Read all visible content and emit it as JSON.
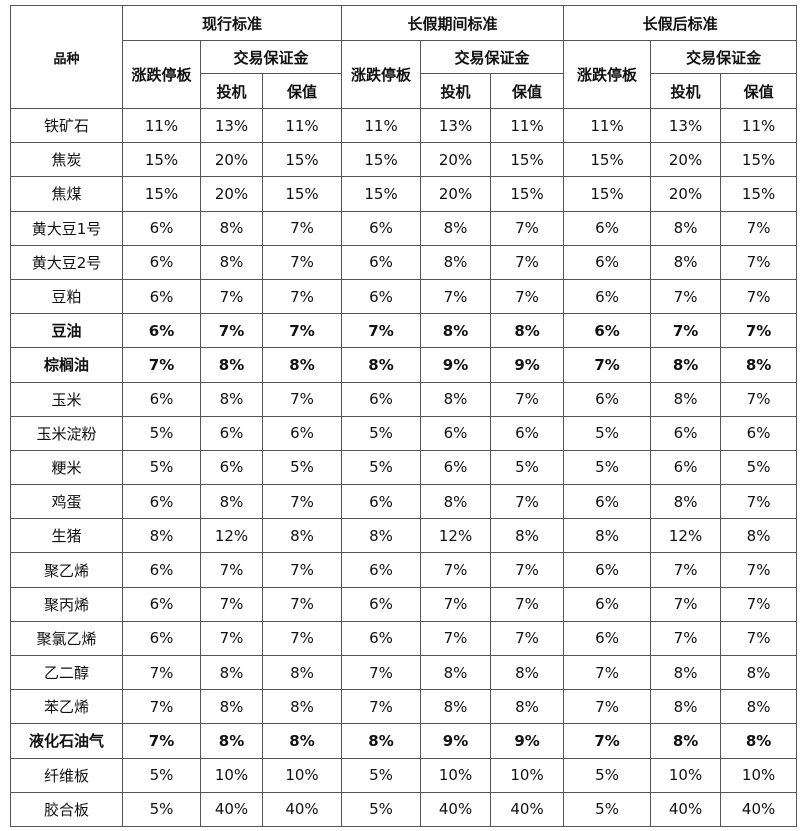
{
  "header": {
    "corner": "品种",
    "groups": [
      {
        "title": "现行标准",
        "limit": "涨跌停板",
        "margin": "交易保证金",
        "spec": "投机",
        "hedge": "保值"
      },
      {
        "title": "长假期间标准",
        "limit": "涨跌停板",
        "margin": "交易保证金",
        "spec": "投机",
        "hedge": "保值"
      },
      {
        "title": "长假后标准",
        "limit": "涨跌停板",
        "margin": "交易保证金",
        "spec": "投机",
        "hedge": "保值"
      }
    ]
  },
  "table": {
    "rows": [
      [
        "铁矿石",
        "11%",
        "13%",
        "11%",
        "11%",
        "13%",
        "11%",
        "11%",
        "13%",
        "11%"
      ],
      [
        "焦炭",
        "15%",
        "20%",
        "15%",
        "15%",
        "20%",
        "15%",
        "15%",
        "20%",
        "15%"
      ],
      [
        "焦煤",
        "15%",
        "20%",
        "15%",
        "15%",
        "20%",
        "15%",
        "15%",
        "20%",
        "15%"
      ],
      [
        "黄大豆1号",
        "6%",
        "8%",
        "7%",
        "6%",
        "8%",
        "7%",
        "6%",
        "8%",
        "7%"
      ],
      [
        "黄大豆2号",
        "6%",
        "8%",
        "7%",
        "6%",
        "8%",
        "7%",
        "6%",
        "8%",
        "7%"
      ],
      [
        "豆粕",
        "6%",
        "7%",
        "7%",
        "6%",
        "7%",
        "7%",
        "6%",
        "7%",
        "7%"
      ],
      [
        "豆油",
        "6%",
        "7%",
        "7%",
        "7%",
        "8%",
        "8%",
        "6%",
        "7%",
        "7%"
      ],
      [
        "棕榈油",
        "7%",
        "8%",
        "8%",
        "8%",
        "9%",
        "9%",
        "7%",
        "8%",
        "8%"
      ],
      [
        "玉米",
        "6%",
        "8%",
        "7%",
        "6%",
        "8%",
        "7%",
        "6%",
        "8%",
        "7%"
      ],
      [
        "玉米淀粉",
        "5%",
        "6%",
        "6%",
        "5%",
        "6%",
        "6%",
        "5%",
        "6%",
        "6%"
      ],
      [
        "粳米",
        "5%",
        "6%",
        "5%",
        "5%",
        "6%",
        "5%",
        "5%",
        "6%",
        "5%"
      ],
      [
        "鸡蛋",
        "6%",
        "8%",
        "7%",
        "6%",
        "8%",
        "7%",
        "6%",
        "8%",
        "7%"
      ],
      [
        "生猪",
        "8%",
        "12%",
        "8%",
        "8%",
        "12%",
        "8%",
        "8%",
        "12%",
        "8%"
      ],
      [
        "聚乙烯",
        "6%",
        "7%",
        "7%",
        "6%",
        "7%",
        "7%",
        "6%",
        "7%",
        "7%"
      ],
      [
        "聚丙烯",
        "6%",
        "7%",
        "7%",
        "6%",
        "7%",
        "7%",
        "6%",
        "7%",
        "7%"
      ],
      [
        "聚氯乙烯",
        "6%",
        "7%",
        "7%",
        "6%",
        "7%",
        "7%",
        "6%",
        "7%",
        "7%"
      ],
      [
        "乙二醇",
        "7%",
        "8%",
        "8%",
        "7%",
        "8%",
        "8%",
        "7%",
        "8%",
        "8%"
      ],
      [
        "苯乙烯",
        "7%",
        "8%",
        "8%",
        "7%",
        "8%",
        "8%",
        "7%",
        "8%",
        "8%"
      ],
      [
        "液化石油气",
        "7%",
        "8%",
        "8%",
        "8%",
        "9%",
        "9%",
        "7%",
        "8%",
        "8%"
      ],
      [
        "纤维板",
        "5%",
        "10%",
        "10%",
        "5%",
        "10%",
        "10%",
        "5%",
        "10%",
        "10%"
      ],
      [
        "胶合板",
        "5%",
        "40%",
        "40%",
        "5%",
        "40%",
        "40%",
        "5%",
        "40%",
        "40%"
      ]
    ],
    "bold_rows": [
      6,
      7,
      18
    ]
  }
}
